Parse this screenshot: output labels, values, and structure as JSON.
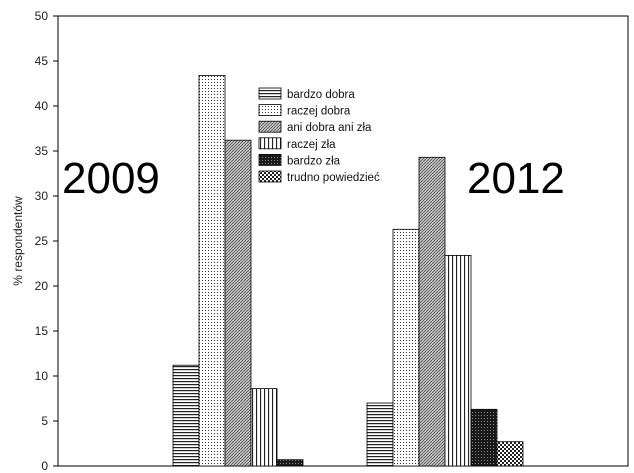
{
  "chart_data": {
    "type": "bar",
    "ylabel": "% respondentów",
    "ylim": [
      0,
      50
    ],
    "yticks": [
      0,
      5,
      10,
      15,
      20,
      25,
      30,
      35,
      40,
      45,
      50
    ],
    "categories": [
      "2009",
      "2012"
    ],
    "legend_position": "top-center",
    "grid": false,
    "series": [
      {
        "name": "bardzo dobra",
        "pattern": "hstripes",
        "values": [
          11.2,
          7.0
        ]
      },
      {
        "name": "raczej dobra",
        "pattern": "dots",
        "values": [
          43.4,
          26.3
        ]
      },
      {
        "name": "ani dobra ani zła",
        "pattern": "diagonal",
        "values": [
          36.2,
          34.3
        ]
      },
      {
        "name": "raczej zła",
        "pattern": "vstripes",
        "values": [
          8.6,
          23.4
        ]
      },
      {
        "name": "bardzo zła",
        "pattern": "dense",
        "values": [
          0.7,
          6.3
        ]
      },
      {
        "name": "trudno powiedzieć",
        "pattern": "checker",
        "values": [
          0,
          2.7
        ]
      }
    ]
  }
}
